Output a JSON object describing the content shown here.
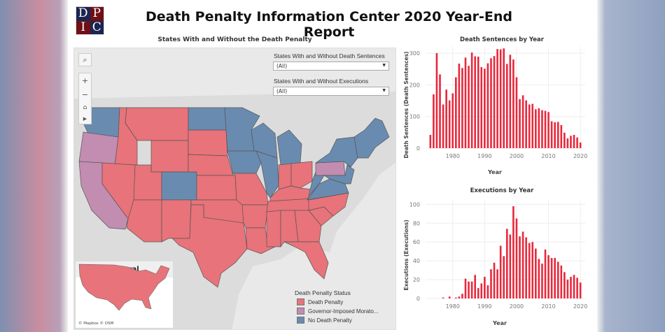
{
  "header": {
    "logo_letters": [
      "D",
      "P",
      "I",
      "C"
    ],
    "title": "Death Penalty Information Center  2020 Year-End Report"
  },
  "map": {
    "title": "States With and Without the Death Penalty",
    "filters": [
      {
        "label": "States With and Without Death Sentences",
        "value": "(All)"
      },
      {
        "label": "States With and Without Executions",
        "value": "(All)"
      }
    ],
    "federal_label": "Federal",
    "credit": "© Mapbox  © OSM",
    "legend": {
      "title": "Death Penalty Status",
      "items": [
        {
          "label": "Death Penalty",
          "color": "#e8737a"
        },
        {
          "label": "Governor-Imposed Morato...",
          "color": "#c28db0"
        },
        {
          "label": "No Death Penalty",
          "color": "#6a8bb0"
        }
      ]
    }
  },
  "chart_data": [
    {
      "type": "bar",
      "title": "Death Sentences by Year",
      "xlabel": "Year",
      "ylabel": "Death Sentences (Death Sentences)",
      "x_ticks": [
        1980,
        1990,
        2000,
        2010,
        2020
      ],
      "y_ticks": [
        0,
        100,
        200,
        300
      ],
      "ylim": [
        0,
        320
      ],
      "xlim": [
        1971.5,
        2021.5
      ],
      "color": "#e8283c",
      "grid": true,
      "x": [
        1973,
        1974,
        1975,
        1976,
        1977,
        1978,
        1979,
        1980,
        1981,
        1982,
        1983,
        1984,
        1985,
        1986,
        1987,
        1988,
        1989,
        1990,
        1991,
        1992,
        1993,
        1994,
        1995,
        1996,
        1997,
        1998,
        1999,
        2000,
        2001,
        2002,
        2003,
        2004,
        2005,
        2006,
        2007,
        2008,
        2009,
        2010,
        2011,
        2012,
        2013,
        2014,
        2015,
        2016,
        2017,
        2018,
        2019,
        2020
      ],
      "values": [
        42,
        170,
        300,
        233,
        138,
        185,
        151,
        173,
        224,
        267,
        253,
        286,
        260,
        302,
        290,
        289,
        256,
        251,
        268,
        284,
        291,
        313,
        312,
        315,
        266,
        295,
        280,
        224,
        155,
        167,
        151,
        138,
        140,
        123,
        126,
        120,
        118,
        114,
        85,
        82,
        83,
        73,
        49,
        31,
        39,
        42,
        34,
        18
      ]
    },
    {
      "type": "bar",
      "title": "Executions by Year",
      "xlabel": "Year",
      "ylabel": "Executions (Executions)",
      "x_ticks": [
        1980,
        1990,
        2000,
        2010,
        2020
      ],
      "y_ticks": [
        0,
        20,
        40,
        60,
        80,
        100
      ],
      "ylim": [
        0,
        104
      ],
      "xlim": [
        1971.5,
        2021.5
      ],
      "color": "#e8283c",
      "grid": true,
      "x": [
        1977,
        1978,
        1979,
        1980,
        1981,
        1982,
        1983,
        1984,
        1985,
        1986,
        1987,
        1988,
        1989,
        1990,
        1991,
        1992,
        1993,
        1994,
        1995,
        1996,
        1997,
        1998,
        1999,
        2000,
        2001,
        2002,
        2003,
        2004,
        2005,
        2006,
        2007,
        2008,
        2009,
        2010,
        2011,
        2012,
        2013,
        2014,
        2015,
        2016,
        2017,
        2018,
        2019,
        2020
      ],
      "values": [
        1,
        0,
        2,
        0,
        1,
        2,
        5,
        21,
        18,
        18,
        25,
        11,
        16,
        23,
        14,
        31,
        38,
        31,
        56,
        45,
        74,
        68,
        98,
        85,
        66,
        71,
        65,
        59,
        60,
        53,
        42,
        37,
        52,
        46,
        43,
        43,
        39,
        35,
        28,
        20,
        23,
        25,
        22,
        17
      ]
    }
  ]
}
